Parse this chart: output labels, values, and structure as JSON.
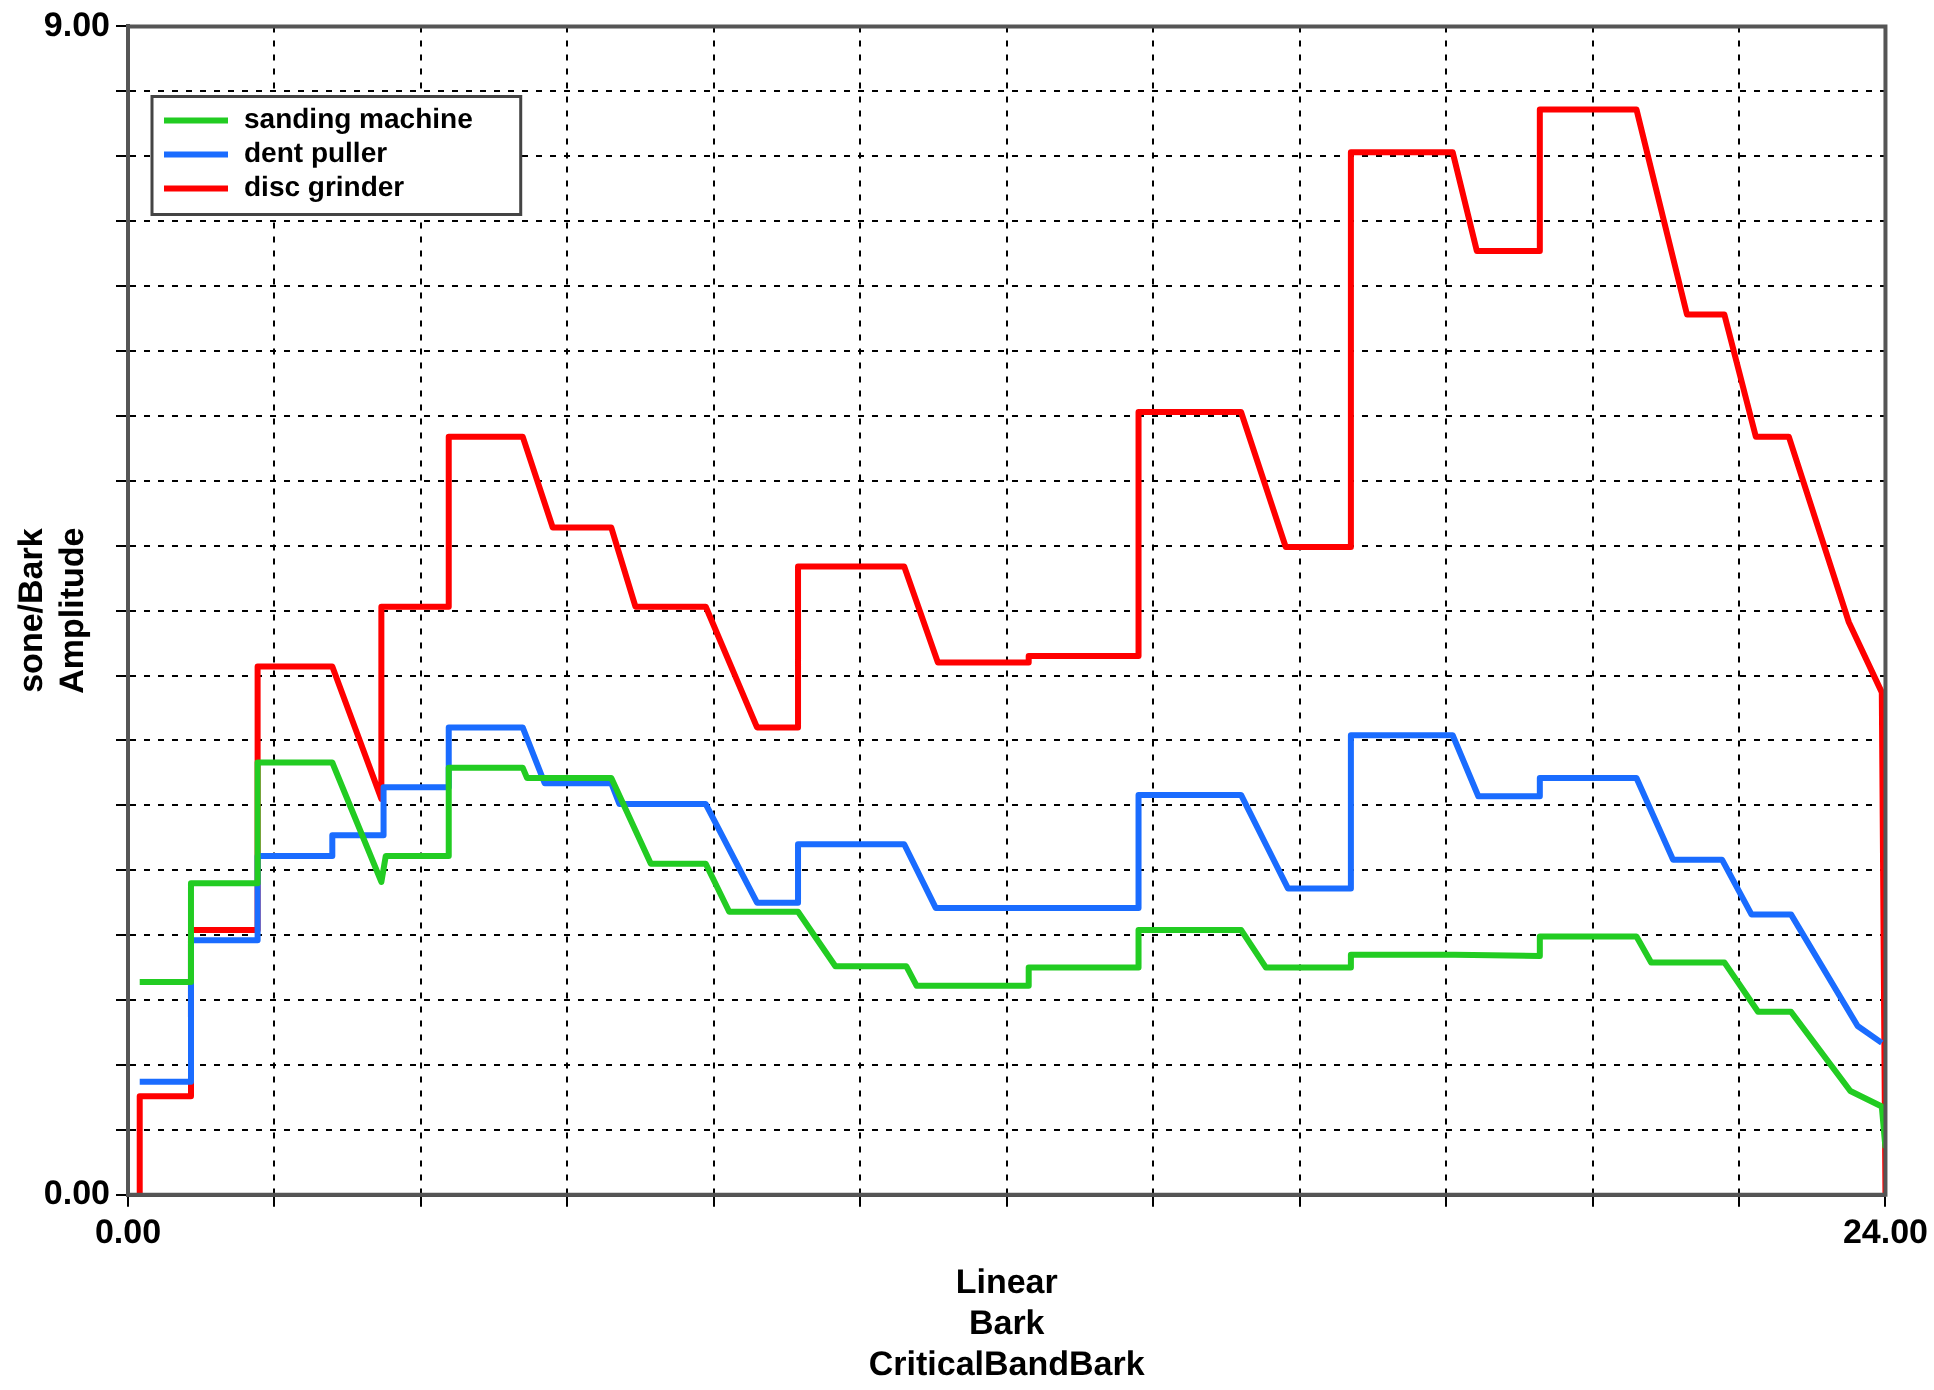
{
  "chart_data": {
    "type": "line",
    "xlabel": "Linear\nBark\nCriticalBandBark",
    "ylabel": "sone/Bark\nAmplitude",
    "xlim": [
      0,
      24
    ],
    "ylim": [
      0,
      9
    ],
    "xticks": [
      {
        "value": 0,
        "label": "0.00"
      },
      {
        "value": 2,
        "label": null
      },
      {
        "value": 4,
        "label": null
      },
      {
        "value": 6,
        "label": null
      },
      {
        "value": 8,
        "label": null
      },
      {
        "value": 10,
        "label": null
      },
      {
        "value": 12,
        "label": null
      },
      {
        "value": 14,
        "label": null
      },
      {
        "value": 16,
        "label": null
      },
      {
        "value": 18,
        "label": null
      },
      {
        "value": 20,
        "label": null
      },
      {
        "value": 22,
        "label": null
      },
      {
        "value": 24,
        "label": "24.00"
      }
    ],
    "yticks": [
      {
        "value": 0,
        "label": "0.00"
      },
      {
        "value": 0.5,
        "label": null
      },
      {
        "value": 1,
        "label": null
      },
      {
        "value": 1.5,
        "label": null
      },
      {
        "value": 2,
        "label": null
      },
      {
        "value": 2.5,
        "label": null
      },
      {
        "value": 3,
        "label": null
      },
      {
        "value": 3.5,
        "label": null
      },
      {
        "value": 4,
        "label": null
      },
      {
        "value": 4.5,
        "label": null
      },
      {
        "value": 5,
        "label": null
      },
      {
        "value": 5.5,
        "label": null
      },
      {
        "value": 6,
        "label": null
      },
      {
        "value": 6.5,
        "label": null
      },
      {
        "value": 7,
        "label": null
      },
      {
        "value": 7.5,
        "label": null
      },
      {
        "value": 8,
        "label": null
      },
      {
        "value": 8.5,
        "label": null
      },
      {
        "value": 9,
        "label": "9.00"
      }
    ],
    "grid": true,
    "legend": "top left",
    "marker": "none",
    "series": [
      {
        "name": "sanding machine",
        "color": "#22cc22",
        "x": [
          0.16,
          0.86,
          0.86,
          1.77,
          1.77,
          2.79,
          3.46,
          3.52,
          4.38,
          4.38,
          5.39,
          5.45,
          6.6,
          7.14,
          7.89,
          8.21,
          9.15,
          9.66,
          10.63,
          10.77,
          12.3,
          12.3,
          13.8,
          13.8,
          15.2,
          15.54,
          16.7,
          16.7,
          18.12,
          19.28,
          19.28,
          20.6,
          20.8,
          21.8,
          22.26,
          22.71,
          23.52,
          23.95,
          24
        ],
        "values": [
          1.64,
          1.64,
          2.4,
          2.4,
          3.33,
          3.33,
          2.41,
          2.61,
          2.61,
          3.29,
          3.29,
          3.21,
          3.21,
          2.55,
          2.55,
          2.18,
          2.18,
          1.76,
          1.76,
          1.61,
          1.61,
          1.75,
          1.75,
          2.04,
          2.04,
          1.75,
          1.75,
          1.85,
          1.85,
          1.84,
          1.99,
          1.99,
          1.79,
          1.79,
          1.41,
          1.41,
          0.8,
          0.68,
          0.36
        ]
      },
      {
        "name": "dent puller",
        "color": "#1a6cff",
        "x": [
          0.16,
          0.86,
          0.86,
          1.77,
          1.77,
          2.79,
          2.79,
          3.49,
          3.49,
          4.38,
          4.38,
          5.39,
          5.69,
          6.6,
          6.71,
          7.89,
          8.59,
          9.15,
          9.15,
          10.6,
          11.03,
          13.8,
          13.8,
          15.2,
          15.84,
          16.7,
          16.7,
          18.09,
          18.44,
          19.28,
          19.28,
          20.6,
          21.1,
          21.77,
          22.17,
          22.71,
          23.62,
          23.95
        ],
        "values": [
          0.87,
          0.87,
          1.96,
          1.96,
          2.61,
          2.61,
          2.77,
          2.77,
          3.14,
          3.14,
          3.6,
          3.6,
          3.17,
          3.17,
          3.01,
          3.01,
          2.25,
          2.25,
          2.7,
          2.7,
          2.21,
          2.21,
          3.08,
          3.08,
          2.36,
          2.36,
          3.54,
          3.54,
          3.07,
          3.07,
          3.21,
          3.21,
          2.58,
          2.58,
          2.16,
          2.16,
          1.3,
          1.17
        ]
      },
      {
        "name": "disc grinder",
        "color": "#ff0000",
        "x": [
          0.16,
          0.16,
          0.86,
          0.86,
          1.77,
          1.77,
          2.79,
          3.46,
          3.46,
          4.38,
          4.38,
          5.39,
          5.8,
          6.6,
          6.93,
          7.89,
          8.59,
          9.15,
          9.15,
          10.6,
          11.06,
          12.3,
          12.3,
          13.8,
          13.8,
          15.2,
          15.81,
          16.7,
          16.7,
          18.09,
          18.42,
          19.28,
          19.28,
          20.6,
          21.29,
          21.8,
          22.23,
          22.68,
          23.5,
          23.95,
          24
        ],
        "values": [
          0,
          0.76,
          0.76,
          2.04,
          2.04,
          4.07,
          4.07,
          3.05,
          4.53,
          4.53,
          5.84,
          5.84,
          5.14,
          5.14,
          4.53,
          4.53,
          3.6,
          3.6,
          4.84,
          4.84,
          4.1,
          4.1,
          4.15,
          4.15,
          6.03,
          6.03,
          4.99,
          4.99,
          8.03,
          8.03,
          7.27,
          7.27,
          8.36,
          8.36,
          6.78,
          6.78,
          5.84,
          5.84,
          4.41,
          3.87,
          0
        ]
      }
    ]
  }
}
